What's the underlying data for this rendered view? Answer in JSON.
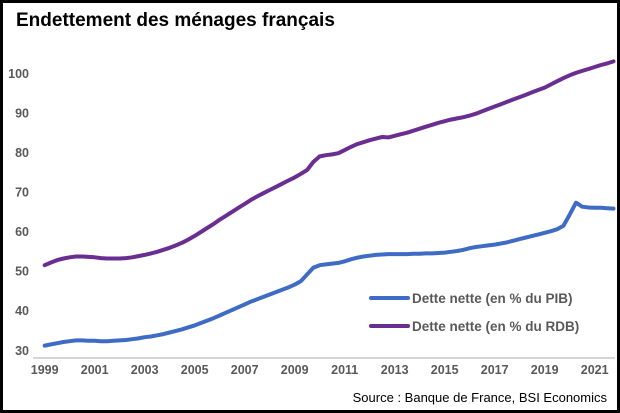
{
  "title": "Endettement des ménages français",
  "source": "Source : Banque de France, BSI Economics",
  "colors": {
    "pib_line": "#3E6BC4",
    "rdb_line": "#6A2D90",
    "axis_line": "#C9C9C9",
    "tick_text": "#595959",
    "frame": "#000000",
    "background": "#FFFFFF"
  },
  "chart_data": {
    "type": "line",
    "title": "Endettement des ménages français",
    "xlabel": "",
    "ylabel": "",
    "x_start_year": 1999,
    "x_step_years": 0.25,
    "x_tick_labels": [
      "1999",
      "2001",
      "2003",
      "2005",
      "2007",
      "2009",
      "2011",
      "2013",
      "2015",
      "2017",
      "2019",
      "2021"
    ],
    "y_ticks": [
      30,
      40,
      50,
      60,
      70,
      80,
      90,
      100
    ],
    "ylim": [
      28,
      106
    ],
    "grid": false,
    "legend_position": "inside-right-lower",
    "series": [
      {
        "name": "Dette nette (en % du PIB)",
        "color_key": "pib_line",
        "values": [
          31.2,
          31.5,
          31.8,
          32.1,
          32.3,
          32.5,
          32.5,
          32.4,
          32.4,
          32.3,
          32.3,
          32.4,
          32.5,
          32.6,
          32.8,
          33.0,
          33.3,
          33.5,
          33.8,
          34.1,
          34.5,
          34.9,
          35.3,
          35.8,
          36.3,
          36.9,
          37.5,
          38.1,
          38.8,
          39.5,
          40.2,
          40.9,
          41.6,
          42.3,
          42.9,
          43.5,
          44.1,
          44.7,
          45.3,
          45.9,
          46.6,
          47.5,
          49.2,
          50.9,
          51.5,
          51.7,
          51.9,
          52.1,
          52.5,
          53.0,
          53.4,
          53.7,
          53.9,
          54.1,
          54.2,
          54.3,
          54.3,
          54.3,
          54.3,
          54.4,
          54.4,
          54.5,
          54.5,
          54.6,
          54.7,
          54.9,
          55.1,
          55.4,
          55.8,
          56.1,
          56.3,
          56.5,
          56.7,
          57.0,
          57.3,
          57.7,
          58.1,
          58.5,
          58.9,
          59.3,
          59.7,
          60.1,
          60.6,
          61.5,
          64.3,
          67.3,
          66.3,
          66.1,
          66.0,
          66.0,
          65.9,
          65.8
        ]
      },
      {
        "name": "Dette nette (en % du RDB)",
        "color_key": "rdb_line",
        "values": [
          51.5,
          52.2,
          52.8,
          53.2,
          53.5,
          53.7,
          53.7,
          53.6,
          53.5,
          53.3,
          53.2,
          53.2,
          53.2,
          53.3,
          53.5,
          53.8,
          54.1,
          54.5,
          54.9,
          55.4,
          55.9,
          56.5,
          57.2,
          58.0,
          58.9,
          59.9,
          60.9,
          61.9,
          63.0,
          64.0,
          65.0,
          66.0,
          67.0,
          68.0,
          68.9,
          69.7,
          70.5,
          71.3,
          72.1,
          72.9,
          73.7,
          74.6,
          75.6,
          77.6,
          79.0,
          79.3,
          79.5,
          79.8,
          80.6,
          81.4,
          82.1,
          82.6,
          83.1,
          83.5,
          83.9,
          83.8,
          84.2,
          84.6,
          85.0,
          85.5,
          86.0,
          86.5,
          87.0,
          87.5,
          87.9,
          88.3,
          88.6,
          88.9,
          89.3,
          89.8,
          90.4,
          91.0,
          91.6,
          92.2,
          92.8,
          93.4,
          94.0,
          94.6,
          95.2,
          95.8,
          96.4,
          97.2,
          98.0,
          98.8,
          99.5,
          100.1,
          100.6,
          101.1,
          101.6,
          102.1,
          102.5,
          103.0
        ]
      }
    ]
  }
}
